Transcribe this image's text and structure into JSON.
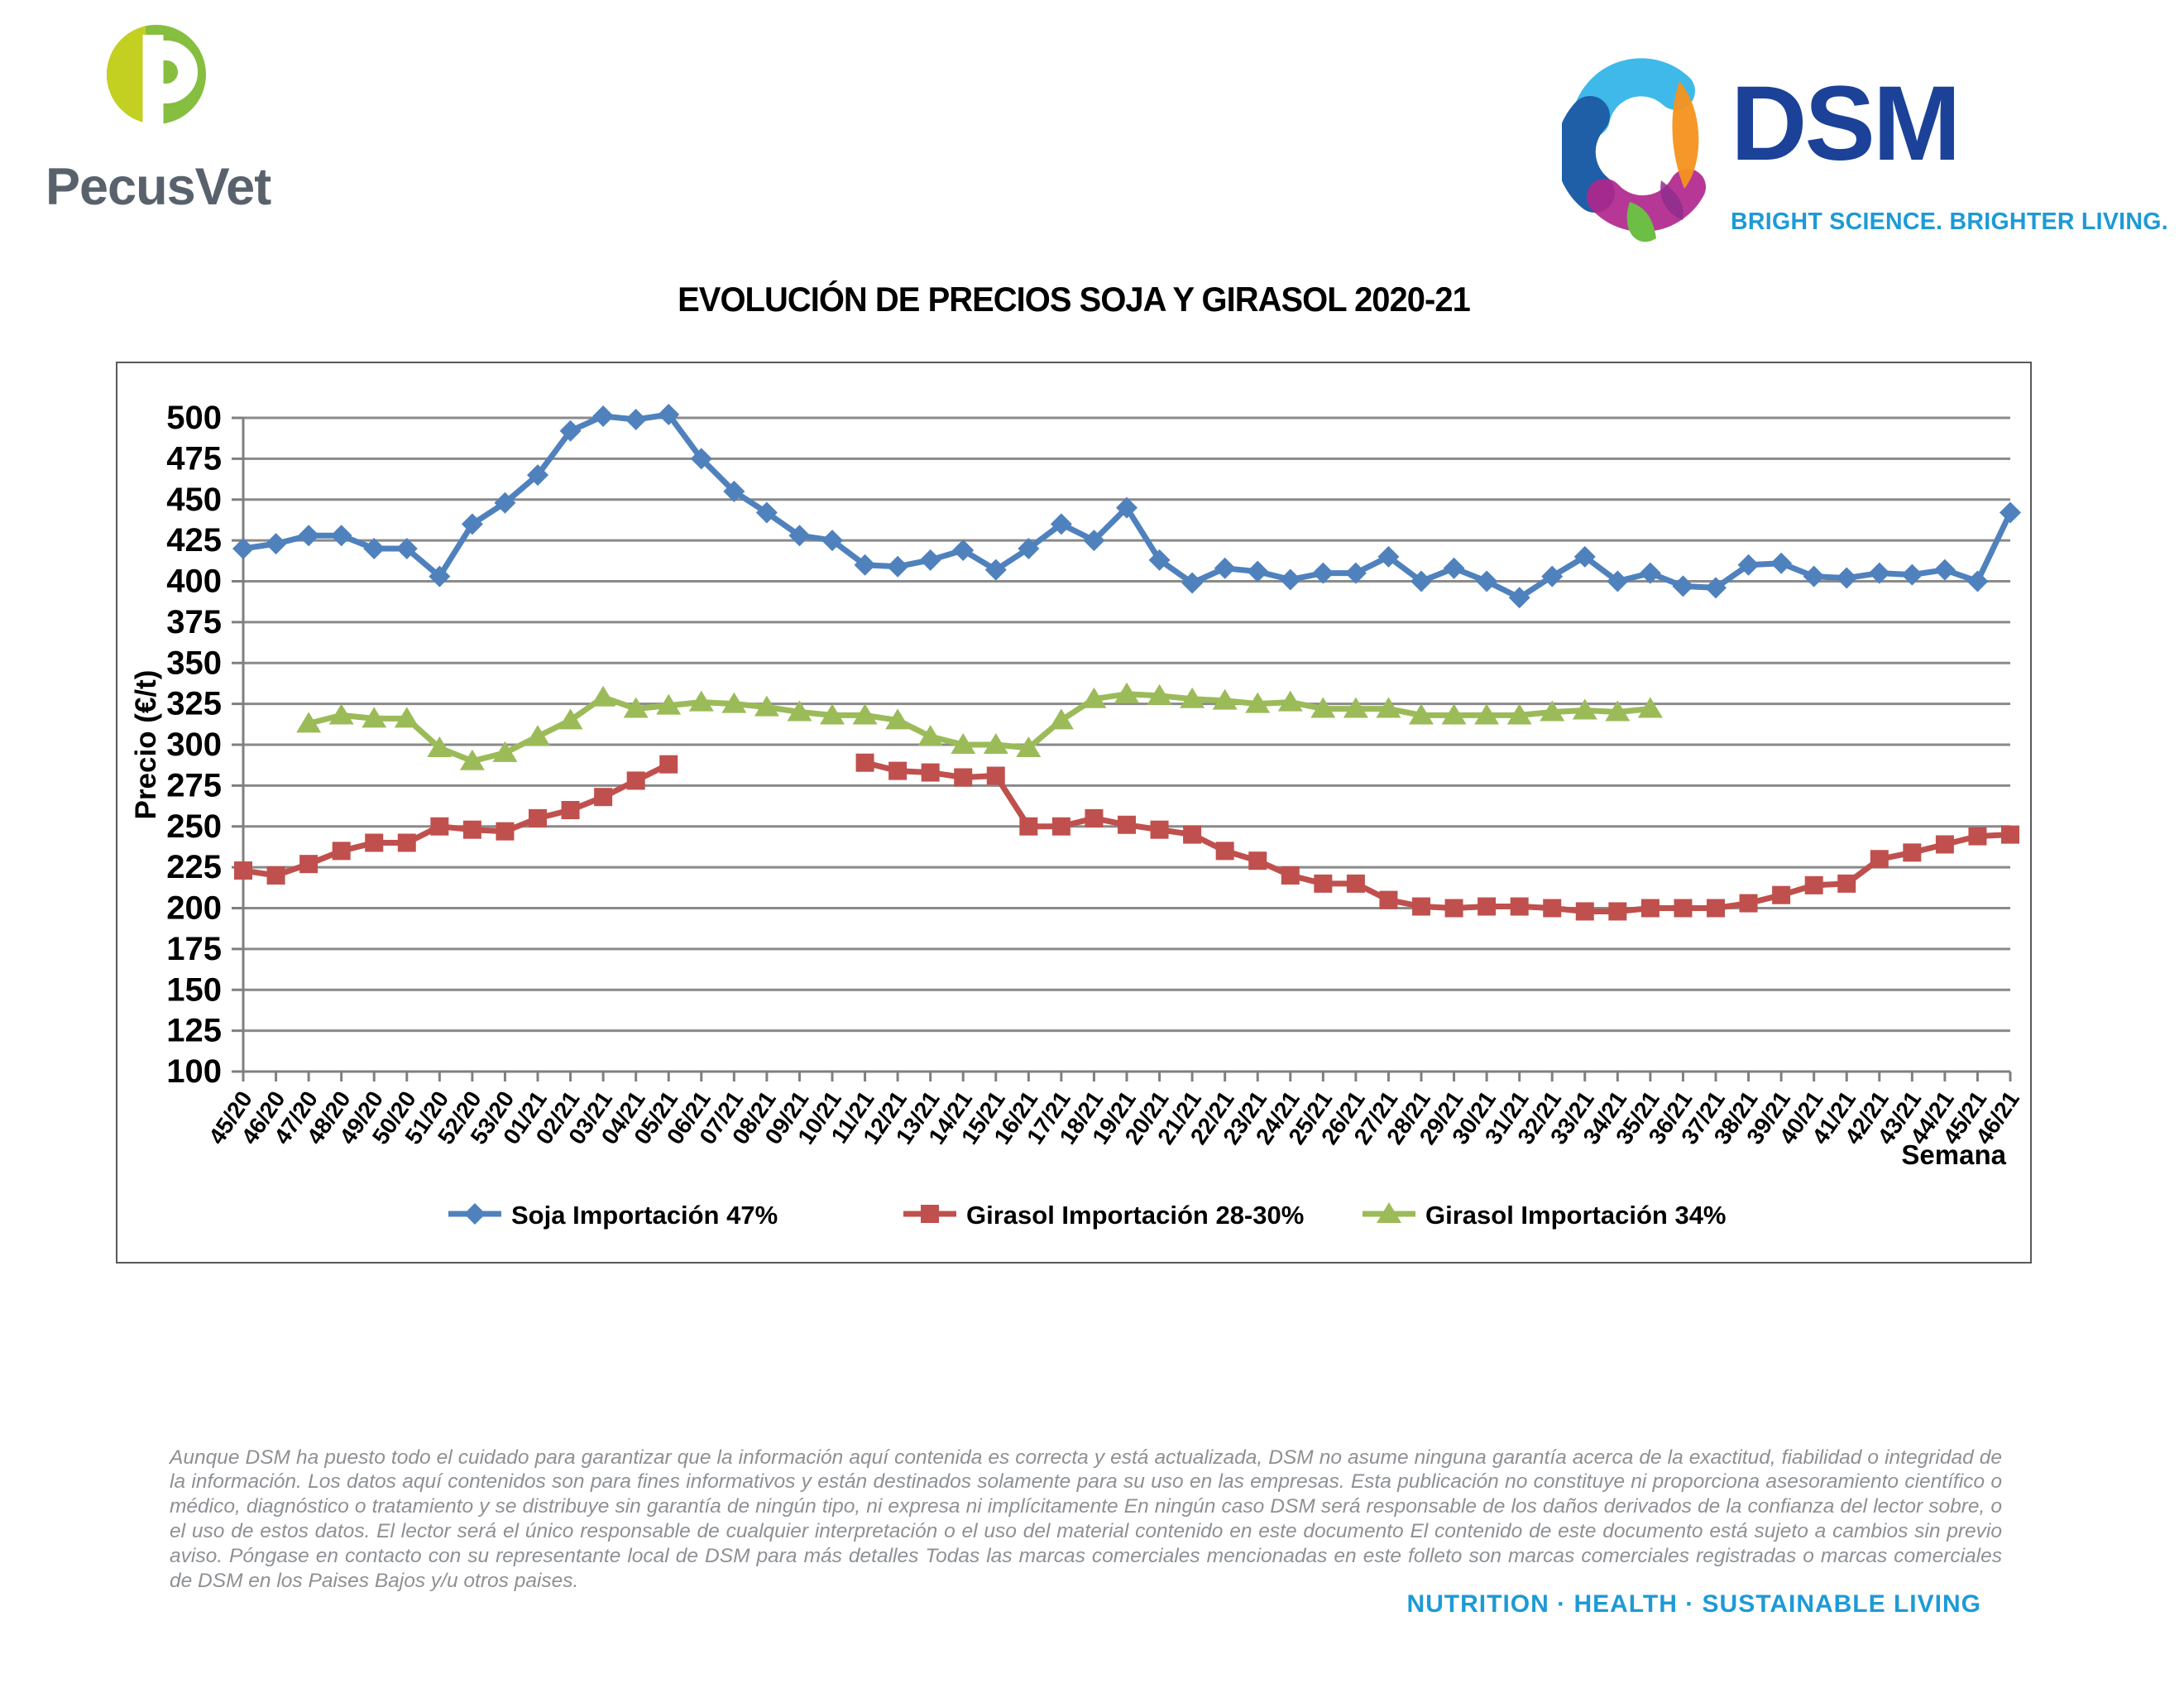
{
  "brand_left": {
    "wordmark": "PecusVet"
  },
  "brand_right": {
    "wordmark": "DSM",
    "tagline": "BRIGHT SCIENCE. BRIGHTER LIVING."
  },
  "chart_data": {
    "type": "line",
    "title": "EVOLUCIÓN DE PRECIOS SOJA Y GIRASOL 2020-21",
    "xlabel": "Semana",
    "ylabel": "Precio (€/t)",
    "ylim": [
      100,
      500
    ],
    "ytick_step": 25,
    "grid": true,
    "legend_position": "bottom",
    "categories": [
      "45/20",
      "46/20",
      "47/20",
      "48/20",
      "49/20",
      "50/20",
      "51/20",
      "52/20",
      "53/20",
      "01/21",
      "02/21",
      "03/21",
      "04/21",
      "05/21",
      "06/21",
      "07/21",
      "08/21",
      "09/21",
      "10/21",
      "11/21",
      "12/21",
      "13/21",
      "14/21",
      "15/21",
      "16/21",
      "17/21",
      "18/21",
      "19/21",
      "20/21",
      "21/21",
      "22/21",
      "23/21",
      "24/21",
      "25/21",
      "26/21",
      "27/21",
      "28/21",
      "29/21",
      "30/21",
      "31/21",
      "32/21",
      "33/21",
      "34/21",
      "35/21",
      "36/21",
      "37/21",
      "38/21",
      "39/21",
      "40/21",
      "41/21",
      "42/21",
      "43/21",
      "44/21",
      "45/21",
      "46/21"
    ],
    "series": [
      {
        "name": "Soja Importación 47%",
        "color": "#4F81BD",
        "marker": "diamond",
        "values": [
          420,
          423,
          428,
          428,
          420,
          420,
          403,
          435,
          448,
          465,
          492,
          501,
          499,
          502,
          475,
          455,
          442,
          428,
          425,
          410,
          409,
          413,
          419,
          407,
          420,
          435,
          425,
          445,
          413,
          399,
          408,
          406,
          401,
          405,
          405,
          415,
          400,
          408,
          400,
          390,
          403,
          415,
          400,
          405,
          397,
          396,
          410,
          411,
          403,
          402,
          405,
          404,
          407,
          400,
          442
        ]
      },
      {
        "name": "Girasol Importación 28-30%",
        "color": "#C0504D",
        "marker": "square",
        "values": [
          223,
          220,
          227,
          235,
          240,
          240,
          250,
          248,
          247,
          255,
          260,
          268,
          278,
          288,
          null,
          null,
          null,
          null,
          null,
          289,
          284,
          283,
          280,
          281,
          250,
          250,
          255,
          251,
          248,
          245,
          235,
          229,
          220,
          215,
          215,
          205,
          201,
          200,
          201,
          201,
          200,
          198,
          198,
          200,
          200,
          200,
          203,
          208,
          214,
          215,
          230,
          234,
          239,
          244,
          245
        ]
      },
      {
        "name": "Girasol Importación 34%",
        "color": "#9BBB59",
        "marker": "triangle",
        "values": [
          null,
          null,
          313,
          318,
          316,
          316,
          298,
          290,
          295,
          305,
          315,
          329,
          322,
          324,
          326,
          325,
          323,
          320,
          318,
          318,
          315,
          305,
          300,
          300,
          298,
          315,
          328,
          331,
          330,
          328,
          327,
          325,
          326,
          322,
          322,
          322,
          318,
          318,
          318,
          318,
          320,
          321,
          320,
          322,
          null,
          null,
          null,
          null,
          null,
          null,
          null,
          null,
          null,
          null,
          null
        ]
      }
    ]
  },
  "footer": {
    "disclaimer": "Aunque DSM ha puesto todo el cuidado para garantizar que la información aquí contenida es correcta y está actualizada, DSM no asume ninguna garantía acerca de la exactitud, fiabilidad o integridad de la información. Los datos aquí contenidos son para fines informativos y están destinados solamente para su uso en las empresas. Esta publicación no constituye ni proporciona asesoramiento científico o médico, diagnóstico o tratamiento y se distribuye sin garantía de ningún tipo, ni expresa ni implícitamente En ningún caso DSM será responsable de los daños derivados de la confianza del lector sobre, o el uso de estos datos. El lector será el único responsable de cualquier interpretación o el uso del material contenido en este documento El contenido de este documento está sujeto a cambios sin previo aviso. Póngase en contacto con su representante local de DSM para más detalles Todas las marcas comerciales mencionadas en este folleto son marcas comerciales registradas o marcas comerciales de DSM en los Paises Bajos y/u otros paises.",
    "tagline": "NUTRITION · HEALTH · SUSTAINABLE LIVING"
  },
  "colors": {
    "grid": "#8A8A8A",
    "axis": "#7F7F7F",
    "dsm_blue": "#1B4298",
    "dsm_light_blue": "#1D9AD6",
    "pecus_yellow": "#C3D021",
    "pecus_green": "#86BE40",
    "pecus_slate": "#59626C"
  }
}
